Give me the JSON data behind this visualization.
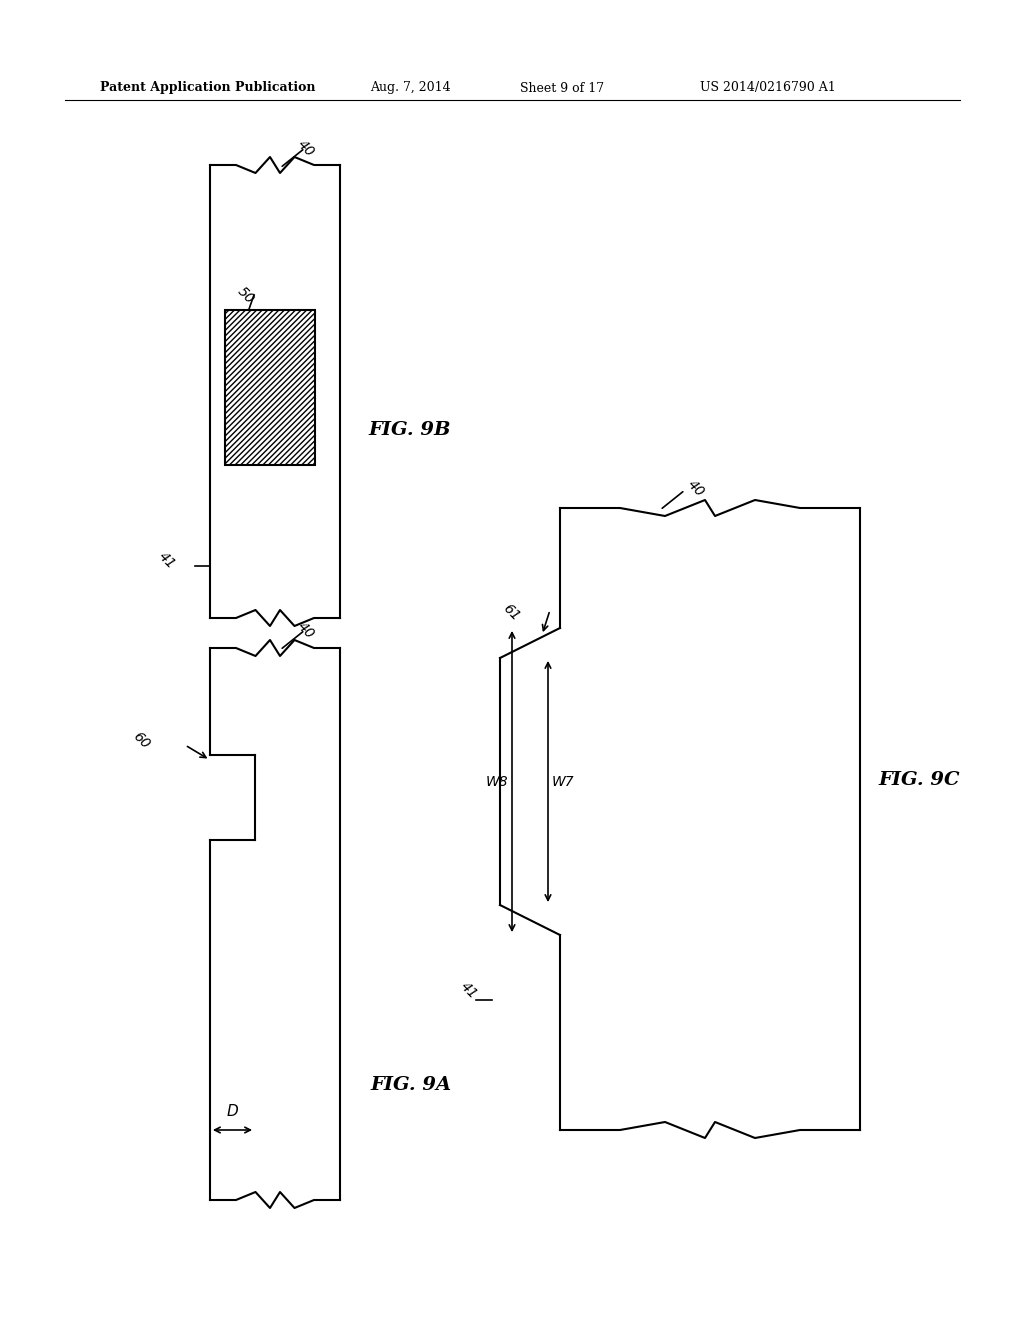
{
  "bg_color": "#ffffff",
  "line_color": "#000000",
  "header_text": "Patent Application Publication",
  "header_date": "Aug. 7, 2014",
  "header_sheet": "Sheet 9 of 17",
  "header_patent": "US 2014/0216790 A1",
  "fig9b_label": "FIG. 9B",
  "fig9a_label": "FIG. 9A",
  "fig9c_label": "FIG. 9C",
  "label_40_fig9b": "40",
  "label_41_fig9b": "41",
  "label_50_fig9b": "50",
  "label_40_fig9a": "40",
  "label_60_fig9a": "60",
  "label_D_fig9a": "D",
  "label_40_fig9c": "40",
  "label_41_fig9c": "41",
  "label_61_fig9c": "61",
  "label_W8_fig9c": "W8",
  "label_W7_fig9c": "W7"
}
